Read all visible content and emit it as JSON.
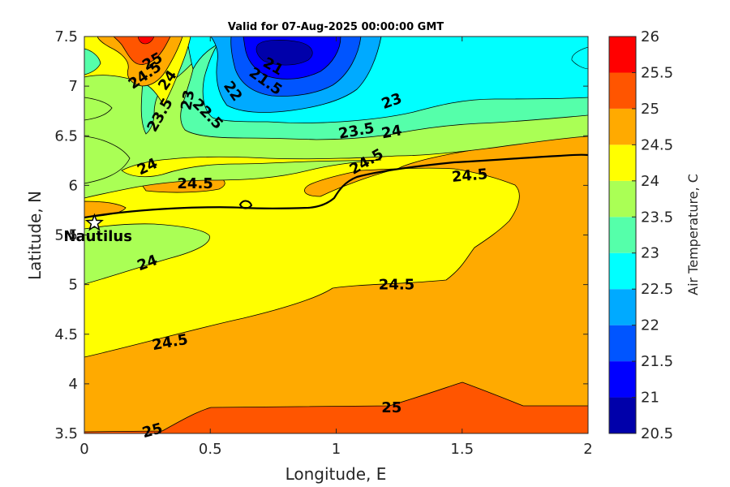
{
  "chart_data": {
    "type": "contourf",
    "title": "Valid for 07-Aug-2025 00:00:00 GMT",
    "xlabel": "Longitude, E",
    "ylabel": "Latitude, N",
    "xlim": [
      0,
      2
    ],
    "ylim": [
      3.5,
      7.5
    ],
    "x_ticks": [
      "0",
      "0.5",
      "1",
      "1.5",
      "2"
    ],
    "y_ticks": [
      "3.5",
      "4",
      "4.5",
      "5",
      "5.5",
      "6",
      "6.5",
      "7",
      "7.5"
    ],
    "colorbar": {
      "label": "Air Temperature, C",
      "ticks": [
        "20.5",
        "21",
        "21.5",
        "22",
        "22.5",
        "23",
        "23.5",
        "24",
        "24.5",
        "25",
        "25.5",
        "26"
      ],
      "levels": [
        20.5,
        21,
        21.5,
        22,
        22.5,
        23,
        23.5,
        24,
        24.5,
        25,
        25.5,
        26
      ],
      "colors": [
        "#0000aa",
        "#0000ff",
        "#0055ff",
        "#00aaff",
        "#00ffff",
        "#55ffaa",
        "#aaff55",
        "#ffff00",
        "#ffaa00",
        "#ff5500",
        "#ff0000",
        "#aa0000"
      ]
    },
    "contour_labels": [
      {
        "text": "25",
        "x": 0.27,
        "y": 7.25,
        "angle": -30
      },
      {
        "text": "24.5",
        "x": 0.24,
        "y": 7.11,
        "angle": -35
      },
      {
        "text": "24",
        "x": 0.33,
        "y": 7.06,
        "angle": -55
      },
      {
        "text": "21",
        "x": 0.75,
        "y": 7.2,
        "angle": 30
      },
      {
        "text": "21.5",
        "x": 0.72,
        "y": 7.05,
        "angle": 35
      },
      {
        "text": "22",
        "x": 0.59,
        "y": 6.95,
        "angle": 55
      },
      {
        "text": "23.5",
        "x": 0.3,
        "y": 6.71,
        "angle": -60
      },
      {
        "text": "23",
        "x": 0.41,
        "y": 6.86,
        "angle": -80
      },
      {
        "text": "22.5",
        "x": 0.49,
        "y": 6.72,
        "angle": 45
      },
      {
        "text": "23",
        "x": 1.22,
        "y": 6.85,
        "angle": -20
      },
      {
        "text": "23.5",
        "x": 1.08,
        "y": 6.55,
        "angle": -10
      },
      {
        "text": "24",
        "x": 1.22,
        "y": 6.54,
        "angle": -10
      },
      {
        "text": "24.5",
        "x": 1.12,
        "y": 6.24,
        "angle": -30
      },
      {
        "text": "24",
        "x": 0.25,
        "y": 6.19,
        "angle": -25
      },
      {
        "text": "24.5",
        "x": 0.44,
        "y": 6.02,
        "angle": 0
      },
      {
        "text": "24.5",
        "x": 1.53,
        "y": 6.1,
        "angle": -5
      },
      {
        "text": "24",
        "x": 0.25,
        "y": 5.22,
        "angle": -20
      },
      {
        "text": "24.5",
        "x": 1.24,
        "y": 5.0,
        "angle": 0
      },
      {
        "text": "24.5",
        "x": 0.34,
        "y": 4.42,
        "angle": -10
      },
      {
        "text": "25",
        "x": 1.22,
        "y": 3.76,
        "angle": 0
      },
      {
        "text": "25",
        "x": 0.27,
        "y": 3.53,
        "angle": -15
      }
    ],
    "marker": {
      "label": "Nautilus",
      "lon": 0.04,
      "lat": 5.62,
      "symbol": "star"
    }
  }
}
